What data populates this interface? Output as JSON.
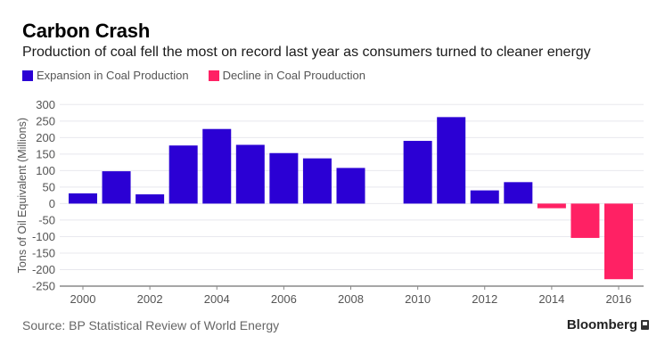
{
  "header": {
    "title": "Carbon Crash",
    "subtitle": "Production of coal fell the most on record last year as consumers turned to cleaner energy"
  },
  "footer": {
    "source": "Source: BP Statistical Review of World Energy",
    "brand": "Bloomberg"
  },
  "chart_data": {
    "type": "bar",
    "title": "Carbon Crash",
    "subtitle": "Production of coal fell the most on record last year as consumers turned to cleaner energy",
    "xlabel": "",
    "ylabel": "Tons of Oil Equivalent (Millions)",
    "ylim": [
      -250,
      300
    ],
    "yticks": [
      300,
      250,
      200,
      150,
      100,
      50,
      0,
      -50,
      -100,
      -150,
      -200,
      -250
    ],
    "xticks": [
      "2000",
      "2002",
      "2004",
      "2006",
      "2008",
      "2010",
      "2012",
      "2014",
      "2016"
    ],
    "categories": [
      "2000",
      "2001",
      "2002",
      "2003",
      "2004",
      "2005",
      "2006",
      "2007",
      "2008",
      "2009",
      "2010",
      "2011",
      "2012",
      "2013",
      "2014",
      "2015",
      "2016"
    ],
    "values": [
      31,
      98,
      28,
      176,
      226,
      178,
      153,
      137,
      108,
      null,
      190,
      262,
      40,
      65,
      -14,
      -104,
      -229
    ],
    "grid": true,
    "legend_position": "top-left",
    "legend": [
      {
        "name": "Expansion in Coal Production",
        "color": "#2b00d4"
      },
      {
        "name": "Decline in Coal Prouduction",
        "color": "#ff2164"
      }
    ],
    "colors": {
      "positive": "#2b00d4",
      "negative": "#ff2164"
    }
  }
}
